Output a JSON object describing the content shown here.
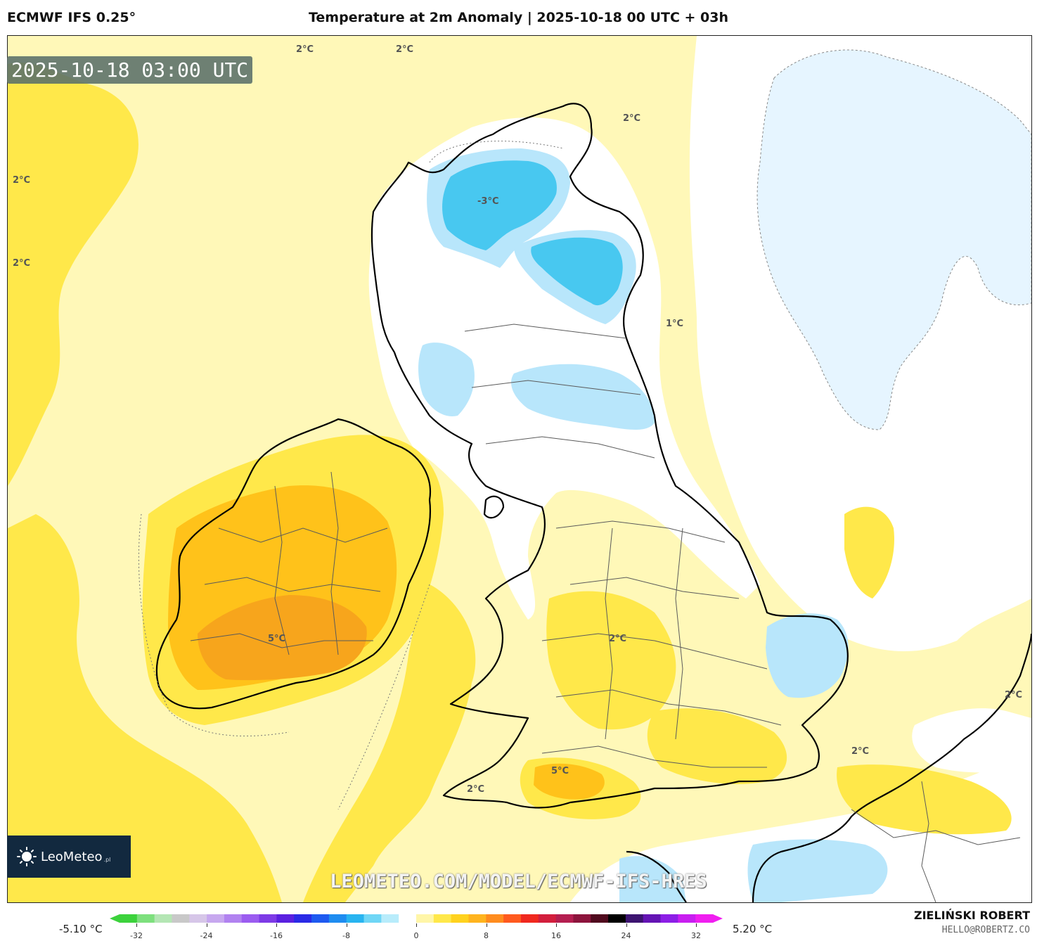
{
  "header": {
    "model": "ECMWF IFS 0.25°",
    "title": "Temperature at 2m Anomaly | 2025-10-18 00 UTC + 03h"
  },
  "map": {
    "timestamp": "2025-10-18 03:00 UTC",
    "watermark": "LEOMETEO.COM/MODEL/ECMWF-IFS-HRES",
    "isolines": [
      "2°C",
      "2°C",
      "2°C",
      "2°C",
      "-3°C",
      "2°C",
      "1°C",
      "5°C",
      "2°C",
      "2°C",
      "2°C",
      "5°C",
      "2°C"
    ],
    "colors": {
      "light_yellow": "#fff8b8",
      "yellow": "#ffe84a",
      "orange": "#ffc21a",
      "dark_orange": "#f7a51c",
      "white": "#ffffff",
      "pale_blue": "#e6f5ff",
      "light_blue": "#b8e6fb",
      "cyan": "#48c8f0",
      "coast": "#000000",
      "border": "#5a5a5a"
    }
  },
  "logo": {
    "name": "LeoMeteo",
    "suffix": ".pl"
  },
  "legend": {
    "min_label": "-5.10 °C",
    "max_label": "5.20 °C",
    "ticks": [
      "-32",
      "-24",
      "-16",
      "-8",
      "0",
      "8",
      "16",
      "24",
      "32"
    ],
    "colors": [
      "#3cd23c",
      "#7de07d",
      "#b4e6b4",
      "#c8c8c8",
      "#d6c6e8",
      "#c7a8ef",
      "#b182f0",
      "#9b5cf0",
      "#7d3ae6",
      "#5a20e0",
      "#2a2ae6",
      "#1e5af0",
      "#1e8cf0",
      "#28b4f0",
      "#6fd6f6",
      "#b8ecfb",
      "#ffffff",
      "#fff6a8",
      "#ffe84a",
      "#ffd21e",
      "#ffb41e",
      "#ff8c1e",
      "#ff5a1e",
      "#f0281e",
      "#d21e3c",
      "#b41e50",
      "#8c143c",
      "#500a1e",
      "#000000",
      "#3c1470",
      "#6414b4",
      "#8c1ee6",
      "#c81ef0",
      "#f01ef0"
    ]
  },
  "credits": {
    "author": "ZIELIŃSKI ROBERT",
    "email": "HELLO@ROBERTZ.CO"
  }
}
